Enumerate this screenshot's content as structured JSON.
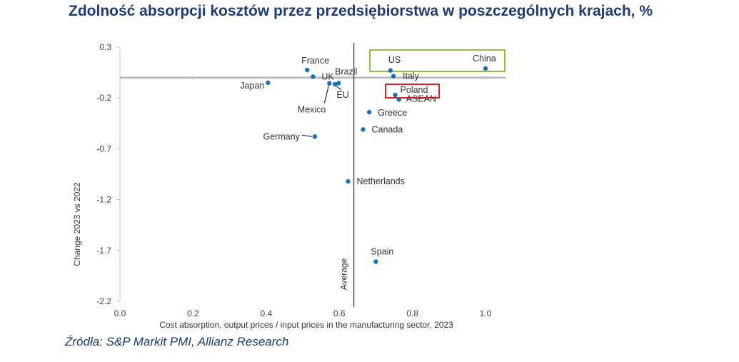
{
  "title": "Zdolność absorpcji kosztów przez przedsiębiorstwa w poszczególnych krajach, %",
  "source": "Źródła: S&P Markit PMI, Allianz Research",
  "colors": {
    "point": "#1f6fb5",
    "title": "#1f3b73",
    "highlight_green": "#8cc63f",
    "highlight_red": "#e31e24",
    "axis": "#bfbfbf",
    "average_line": "#000000"
  },
  "chart_data": {
    "type": "scatter",
    "title": "Zdolność absorpcji kosztów przez przedsiębiorstwa w poszczególnych krajach, %",
    "xlabel": "Cost absorption, output prices / input prices in the manufacturing sector, 2023",
    "ylabel": "Change 2023 vs 2022",
    "xlim": [
      0,
      1.0
    ],
    "ylim": [
      -2.2,
      0.3
    ],
    "x_ticks": [
      "0.0",
      "0.2",
      "0.4",
      "0.6",
      "0.8",
      "1.0"
    ],
    "y_ticks": [
      "0.3",
      "-0.2",
      "-0.7",
      "-1.2",
      "-1.7",
      "-2.2"
    ],
    "average": {
      "x": 0.64,
      "label": "Average"
    },
    "grid": false,
    "points": [
      {
        "name": "China",
        "x": 1.0,
        "y": 0.09
      },
      {
        "name": "US",
        "x": 0.74,
        "y": 0.07
      },
      {
        "name": "Italy",
        "x": 0.748,
        "y": 0.015
      },
      {
        "name": "Poland",
        "x": 0.753,
        "y": -0.17
      },
      {
        "name": "ASEAN",
        "x": 0.763,
        "y": -0.215
      },
      {
        "name": "Greece",
        "x": 0.682,
        "y": -0.34
      },
      {
        "name": "Canada",
        "x": 0.665,
        "y": -0.51
      },
      {
        "name": "Netherlands",
        "x": 0.624,
        "y": -1.02
      },
      {
        "name": "Spain",
        "x": 0.7,
        "y": -1.81
      },
      {
        "name": "France",
        "x": 0.512,
        "y": 0.075
      },
      {
        "name": "UK",
        "x": 0.528,
        "y": 0.01
      },
      {
        "name": "Mexico",
        "x": 0.573,
        "y": -0.055
      },
      {
        "name": "EU",
        "x": 0.588,
        "y": -0.065
      },
      {
        "name": "Brazil",
        "x": 0.598,
        "y": -0.055
      },
      {
        "name": "Japan",
        "x": 0.405,
        "y": -0.05
      },
      {
        "name": "Germany",
        "x": 0.533,
        "y": -0.58
      }
    ],
    "highlights": [
      {
        "color": "green",
        "countries": [
          "US",
          "China"
        ]
      },
      {
        "color": "red",
        "countries": [
          "Poland"
        ]
      }
    ]
  }
}
